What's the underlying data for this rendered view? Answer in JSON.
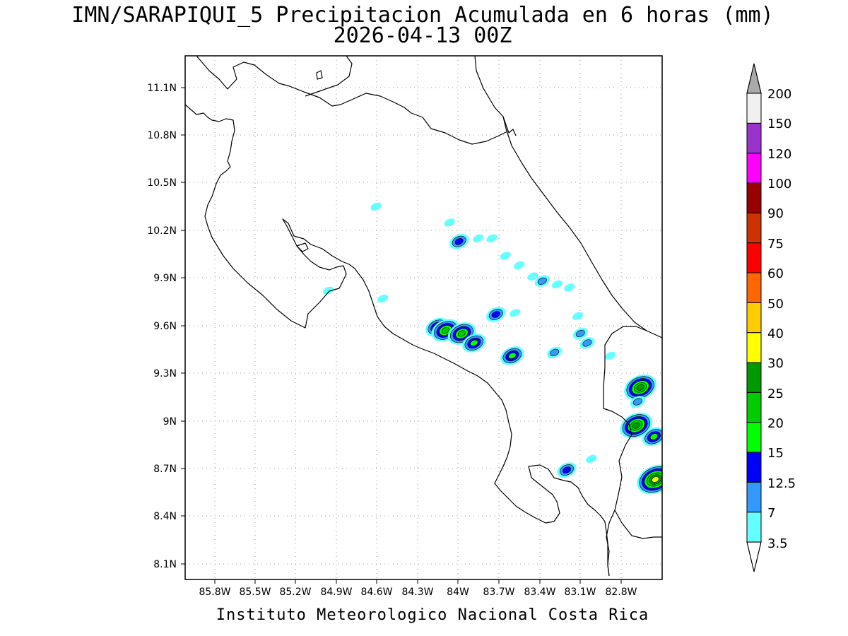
{
  "header": {
    "title": "IMN/SARAPIQUI_5 Precipitacion Acumulada en 6 horas (mm)",
    "subtitle": "2026-04-13 00Z"
  },
  "footer": {
    "credit": "Instituto Meteorologico Nacional Costa Rica"
  },
  "map": {
    "lon_range": [
      -86.0,
      -82.5
    ],
    "lat_range": [
      8.0,
      11.3
    ],
    "lat_ticks": [
      "11.1N",
      "10.8N",
      "10.5N",
      "10.2N",
      "9.9N",
      "9.6N",
      "9.3N",
      "9N",
      "8.7N",
      "8.4N",
      "8.1N"
    ],
    "lon_ticks": [
      "85.8W",
      "85.5W",
      "85.2W",
      "84.9W",
      "84.6W",
      "84.3W",
      "84W",
      "83.7W",
      "83.4W",
      "83.1W",
      "82.8W"
    ],
    "grid": true,
    "precip_cells": [
      {
        "lon": -84.55,
        "lat": 9.77,
        "mm": 3.5
      },
      {
        "lon": -84.6,
        "lat": 10.35,
        "mm": 3.5
      },
      {
        "lon": -84.95,
        "lat": 9.82,
        "mm": 3.5
      },
      {
        "lon": -84.06,
        "lat": 10.25,
        "mm": 3.5
      },
      {
        "lon": -83.99,
        "lat": 10.13,
        "mm": 12.5
      },
      {
        "lon": -83.85,
        "lat": 10.15,
        "mm": 3.5
      },
      {
        "lon": -83.75,
        "lat": 10.15,
        "mm": 3.5
      },
      {
        "lon": -83.65,
        "lat": 10.04,
        "mm": 3.5
      },
      {
        "lon": -83.55,
        "lat": 9.98,
        "mm": 3.5
      },
      {
        "lon": -83.45,
        "lat": 9.91,
        "mm": 3.5
      },
      {
        "lon": -83.38,
        "lat": 9.88,
        "mm": 7
      },
      {
        "lon": -83.27,
        "lat": 9.86,
        "mm": 3.5
      },
      {
        "lon": -83.18,
        "lat": 9.84,
        "mm": 3.5
      },
      {
        "lon": -83.72,
        "lat": 9.67,
        "mm": 12.5
      },
      {
        "lon": -83.58,
        "lat": 9.68,
        "mm": 3.5
      },
      {
        "lon": -84.15,
        "lat": 9.59,
        "mm": 15
      },
      {
        "lon": -84.09,
        "lat": 9.57,
        "mm": 20
      },
      {
        "lon": -83.97,
        "lat": 9.55,
        "mm": 20
      },
      {
        "lon": -83.88,
        "lat": 9.49,
        "mm": 15
      },
      {
        "lon": -83.6,
        "lat": 9.41,
        "mm": 15
      },
      {
        "lon": -83.29,
        "lat": 9.43,
        "mm": 7
      },
      {
        "lon": -83.1,
        "lat": 9.55,
        "mm": 7
      },
      {
        "lon": -83.05,
        "lat": 9.49,
        "mm": 7
      },
      {
        "lon": -83.12,
        "lat": 9.66,
        "mm": 3.5
      },
      {
        "lon": -82.88,
        "lat": 9.41,
        "mm": 3.5
      },
      {
        "lon": -82.66,
        "lat": 9.21,
        "mm": 25
      },
      {
        "lon": -82.68,
        "lat": 9.12,
        "mm": 7
      },
      {
        "lon": -82.69,
        "lat": 8.97,
        "mm": 25
      },
      {
        "lon": -82.56,
        "lat": 8.9,
        "mm": 15
      },
      {
        "lon": -82.55,
        "lat": 8.63,
        "mm": 30
      },
      {
        "lon": -83.2,
        "lat": 8.69,
        "mm": 12.5
      },
      {
        "lon": -83.02,
        "lat": 8.76,
        "mm": 3.5
      }
    ]
  },
  "colorbar": {
    "labels": [
      "3.5",
      "7",
      "12.5",
      "15",
      "20",
      "25",
      "30",
      "40",
      "50",
      "60",
      "75",
      "90",
      "100",
      "120",
      "150",
      "200"
    ],
    "bin_colors": [
      "#66ffff",
      "#3399ff",
      "#0000ff",
      "#00ff00",
      "#00cc00",
      "#009900",
      "#ffff00",
      "#ffcc00",
      "#ff6600",
      "#ff0000",
      "#cc3300",
      "#990000",
      "#ff00ff",
      "#9933cc",
      "#f0f0f0"
    ],
    "top_triangle_color": "#aaaaaa",
    "bottom_triangle_color": "#ffffff"
  }
}
